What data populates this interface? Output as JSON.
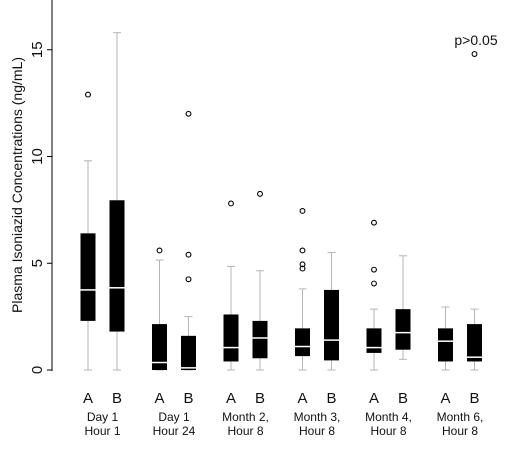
{
  "chart_data": {
    "type": "box",
    "ylabel": "Plasma Isoniazid Concentrations (ng/mL)",
    "ylim": [
      0,
      16
    ],
    "yticks": [
      0,
      5,
      10,
      15
    ],
    "annotation": "p>0.05",
    "groups": [
      {
        "label_line1": "Day 1",
        "label_line2": "Hour 1"
      },
      {
        "label_line1": "Day 1",
        "label_line2": "Hour 24"
      },
      {
        "label_line1": "Month 2,",
        "label_line2": "Hour 8"
      },
      {
        "label_line1": "Month 3,",
        "label_line2": "Hour 8"
      },
      {
        "label_line1": "Month 4,",
        "label_line2": "Hour 8"
      },
      {
        "label_line1": "Month 6,",
        "label_line2": "Hour 8"
      }
    ],
    "boxes": [
      {
        "group": 0,
        "arm": "A",
        "whisker_low": 0,
        "q1": 2.3,
        "median": 3.75,
        "q3": 6.4,
        "whisker_high": 9.8,
        "outliers": [
          12.9
        ]
      },
      {
        "group": 0,
        "arm": "B",
        "whisker_low": 0,
        "q1": 1.8,
        "median": 3.85,
        "q3": 7.95,
        "whisker_high": 15.8,
        "outliers": []
      },
      {
        "group": 1,
        "arm": "A",
        "whisker_low": 0,
        "q1": 0,
        "median": 0.35,
        "q3": 2.15,
        "whisker_high": 5.15,
        "outliers": [
          5.6
        ]
      },
      {
        "group": 1,
        "arm": "B",
        "whisker_low": 0,
        "q1": 0,
        "median": 0.1,
        "q3": 1.6,
        "whisker_high": 2.5,
        "outliers": [
          4.25,
          5.4,
          12.0
        ]
      },
      {
        "group": 2,
        "arm": "A",
        "whisker_low": 0,
        "q1": 0.4,
        "median": 1.05,
        "q3": 2.6,
        "whisker_high": 4.85,
        "outliers": [
          7.8
        ]
      },
      {
        "group": 2,
        "arm": "B",
        "whisker_low": 0,
        "q1": 0.55,
        "median": 1.5,
        "q3": 2.3,
        "whisker_high": 4.65,
        "outliers": [
          8.25
        ]
      },
      {
        "group": 3,
        "arm": "A",
        "whisker_low": 0,
        "q1": 0.65,
        "median": 1.1,
        "q3": 1.95,
        "whisker_high": 3.8,
        "outliers": [
          4.75,
          4.95,
          5.6,
          7.45
        ]
      },
      {
        "group": 3,
        "arm": "B",
        "whisker_low": 0,
        "q1": 0.45,
        "median": 1.4,
        "q3": 3.75,
        "whisker_high": 5.5,
        "outliers": []
      },
      {
        "group": 4,
        "arm": "A",
        "whisker_low": 0,
        "q1": 0.8,
        "median": 1.05,
        "q3": 1.95,
        "whisker_high": 2.85,
        "outliers": [
          4.05,
          4.7,
          6.9
        ]
      },
      {
        "group": 4,
        "arm": "B",
        "whisker_low": 0.5,
        "q1": 0.95,
        "median": 1.75,
        "q3": 2.85,
        "whisker_high": 5.35,
        "outliers": []
      },
      {
        "group": 5,
        "arm": "A",
        "whisker_low": 0,
        "q1": 0.4,
        "median": 1.35,
        "q3": 1.95,
        "whisker_high": 2.95,
        "outliers": []
      },
      {
        "group": 5,
        "arm": "B",
        "whisker_low": 0,
        "q1": 0.4,
        "median": 0.6,
        "q3": 2.15,
        "whisker_high": 2.85,
        "outliers": [
          14.8
        ]
      }
    ]
  }
}
